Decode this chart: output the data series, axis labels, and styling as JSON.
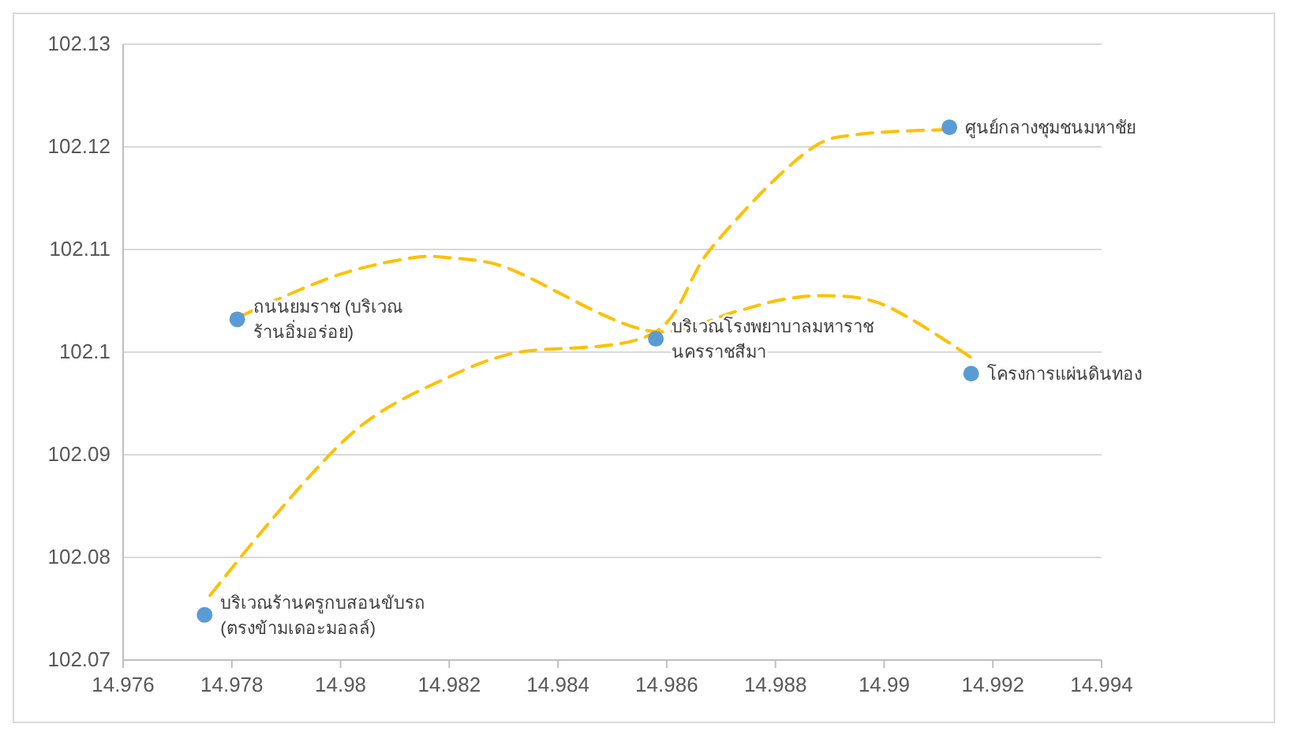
{
  "chart_data": {
    "type": "scatter",
    "grid": "y",
    "xlim": [
      14.976,
      14.994
    ],
    "xticks": [
      14.976,
      14.978,
      14.98,
      14.982,
      14.984,
      14.986,
      14.988,
      14.99,
      14.992,
      14.994
    ],
    "ylim": [
      102.07,
      102.13
    ],
    "yticks": [
      102.07,
      102.08,
      102.09,
      102.1,
      102.11,
      102.12,
      102.13
    ],
    "series": [
      {
        "type": "line",
        "color": "#ffc000",
        "line_style": "dashed",
        "marker": "none",
        "x": [
          14.9776,
          14.9803,
          14.982,
          14.9831,
          14.9858,
          14.9868,
          14.9888,
          14.9895,
          14.9913
        ],
        "values": [
          102.0763,
          102.0925,
          102.0976,
          102.0998,
          102.102,
          102.11,
          102.1203,
          102.1212,
          102.1217
        ]
      },
      {
        "type": "line",
        "color": "#ffc000",
        "line_style": "dashed",
        "marker": "none",
        "x": [
          14.9782,
          14.98,
          14.9815,
          14.982,
          14.9829,
          14.9858,
          14.9873,
          14.9881,
          14.9889,
          14.9899,
          14.9917
        ],
        "values": [
          102.1036,
          102.1076,
          102.1093,
          102.1092,
          102.1085,
          102.102,
          102.104,
          102.1051,
          102.1055,
          102.1048,
          102.0991
        ]
      },
      {
        "color": "#5b9bd5",
        "marker": "circle",
        "x": [
          14.9781,
          14.9858,
          14.9912,
          14.9916,
          14.9775
        ],
        "values": [
          102.1032,
          102.1013,
          102.1219,
          102.0979,
          102.0744
        ]
      }
    ],
    "annotations": [
      {
        "text": "ถนนยมราช (บริเวณ ร้านอิ่มอร่อย)",
        "x": 14.9781,
        "y": 102.1032
      },
      {
        "text": "บริเวณโรงพยาบาลมหาราช นครราชสีมา",
        "x": 14.9858,
        "y": 102.1013
      },
      {
        "text": "ศูนย์กลางชุมชนมหาชัย",
        "x": 14.9912,
        "y": 102.1219
      },
      {
        "text": "โครงการแผ่นดินทอง",
        "x": 14.9916,
        "y": 102.0979
      },
      {
        "text": "บริเวณร้านครูกบสอนขับรถ (ตรงข้ามเดอะมอลล์)",
        "x": 14.9775,
        "y": 102.0744
      }
    ]
  }
}
